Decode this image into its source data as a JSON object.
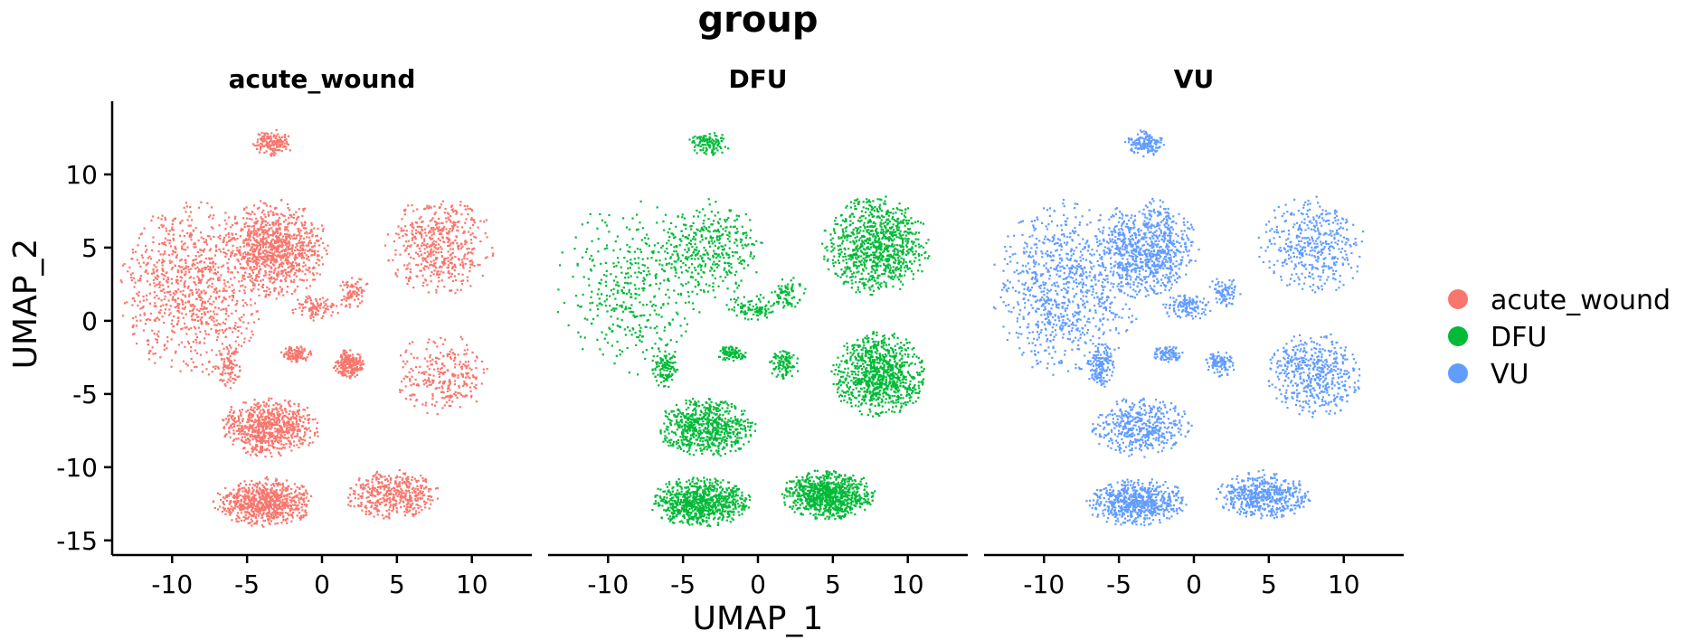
{
  "chart_data": {
    "type": "scatter",
    "title": "group",
    "xlabel": "UMAP_1",
    "ylabel": "UMAP_2",
    "xlim": [
      -14,
      14
    ],
    "ylim": [
      -16,
      15
    ],
    "x_ticks": [
      -10,
      -5,
      0,
      5,
      10
    ],
    "y_ticks": [
      10,
      5,
      0,
      -5,
      -10,
      -15
    ],
    "x_tick_labels": [
      "-10",
      "-5",
      "0",
      "5",
      "10"
    ],
    "y_tick_labels": [
      "10",
      "5",
      "0",
      "-5",
      "-10",
      "-15"
    ],
    "grid": false,
    "legend_position": "right",
    "facets": [
      {
        "name": "acute_wound",
        "color": "#F8766D"
      },
      {
        "name": "DFU",
        "color": "#00BA38"
      },
      {
        "name": "VU",
        "color": "#619CFF"
      }
    ],
    "legend": [
      {
        "label": "acute_wound",
        "color": "#F8766D"
      },
      {
        "label": "DFU",
        "color": "#00BA38"
      },
      {
        "label": "VU",
        "color": "#619CFF"
      }
    ],
    "clusters": [
      {
        "cx": -8.6,
        "cy": 2.3,
        "rx": 4.4,
        "ry": 5.3,
        "weights": [
          1.0,
          0.45,
          0.95
        ]
      },
      {
        "cx": -3.2,
        "cy": 5.0,
        "rx": 3.1,
        "ry": 3.0,
        "weights": [
          1.0,
          0.4,
          0.9
        ]
      },
      {
        "cx": 7.8,
        "cy": 5.2,
        "rx": 3.2,
        "ry": 3.0,
        "weights": [
          0.55,
          1.0,
          0.45
        ]
      },
      {
        "cx": 8.0,
        "cy": -3.6,
        "rx": 2.8,
        "ry": 2.6,
        "weights": [
          0.3,
          1.0,
          0.55
        ]
      },
      {
        "cx": -3.6,
        "cy": -7.2,
        "rx": 3.0,
        "ry": 1.8,
        "weights": [
          0.8,
          0.75,
          0.5
        ]
      },
      {
        "cx": -3.9,
        "cy": -12.3,
        "rx": 3.0,
        "ry": 1.5,
        "weights": [
          0.8,
          0.9,
          0.7
        ]
      },
      {
        "cx": 4.6,
        "cy": -11.8,
        "rx": 2.8,
        "ry": 1.5,
        "weights": [
          0.5,
          1.0,
          0.6
        ]
      },
      {
        "cx": -3.3,
        "cy": 12.2,
        "rx": 1.2,
        "ry": 0.8,
        "weights": [
          0.4,
          0.3,
          0.4
        ]
      },
      {
        "cx": 1.7,
        "cy": -2.9,
        "rx": 0.9,
        "ry": 0.9,
        "weights": [
          0.6,
          0.3,
          0.3
        ]
      },
      {
        "cx": -1.8,
        "cy": -2.2,
        "rx": 0.9,
        "ry": 0.5,
        "weights": [
          0.4,
          0.3,
          0.3
        ]
      },
      {
        "cx": -6.3,
        "cy": -3.0,
        "rx": 0.8,
        "ry": 1.4,
        "weights": [
          0.25,
          0.3,
          0.4
        ]
      },
      {
        "cx": 2.0,
        "cy": 2.0,
        "rx": 1.0,
        "ry": 1.0,
        "weights": [
          0.2,
          0.2,
          0.2
        ]
      },
      {
        "cx": -0.5,
        "cy": 1.0,
        "rx": 1.5,
        "ry": 0.8,
        "weights": [
          0.25,
          0.25,
          0.3
        ]
      }
    ]
  }
}
